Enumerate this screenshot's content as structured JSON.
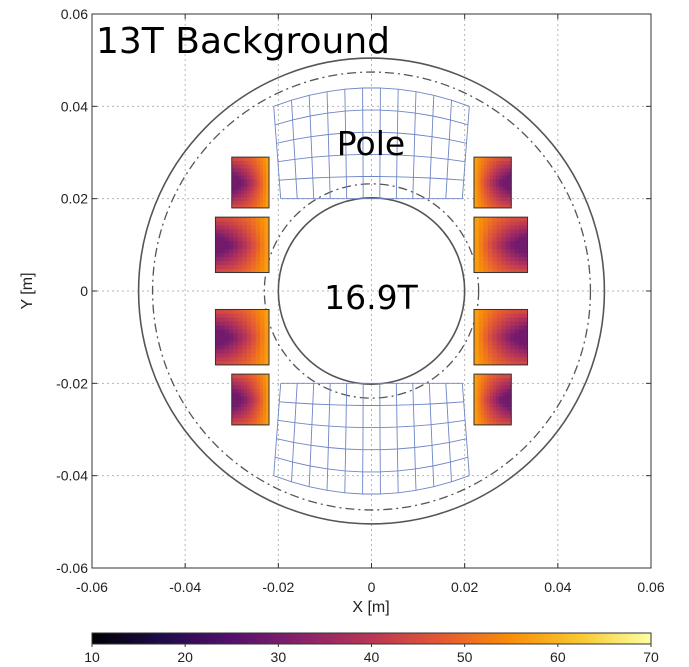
{
  "chart_data": {
    "type": "heatmap",
    "title": "",
    "xlabel": "X [m]",
    "ylabel": "Y [m]",
    "xlim": [
      -0.06,
      0.06
    ],
    "ylim": [
      -0.06,
      0.06
    ],
    "xticks": [
      "-0.06",
      "-0.04",
      "-0.02",
      "0",
      "0.02",
      "0.04",
      "0.06"
    ],
    "yticks": [
      "0.06",
      "0.04",
      "0.02",
      "0",
      "-0.02",
      "-0.04",
      "-0.06"
    ],
    "grid": true,
    "annotations": {
      "background": "13T Background",
      "pole": "Pole",
      "bore_field": "16.9T"
    },
    "colorbar": {
      "ticks": [
        "10",
        "20",
        "30",
        "40",
        "50",
        "60",
        "70"
      ],
      "range": [
        10,
        70
      ],
      "colormap": "inferno",
      "colors": [
        "#000004",
        "#1f0c48",
        "#550f6d",
        "#88226a",
        "#ba3655",
        "#e35933",
        "#f98e09",
        "#f8c931",
        "#fcffa4"
      ]
    },
    "circles": [
      {
        "r": 0.05,
        "style": "solid"
      },
      {
        "r": 0.047,
        "style": "dash-dot"
      },
      {
        "r": 0.023,
        "style": "dash-dot"
      },
      {
        "r": 0.02,
        "style": "solid"
      }
    ],
    "coil_blocks": [
      {
        "side": "left",
        "x": [
          -0.03,
          -0.022
        ],
        "y": [
          0.018,
          0.029
        ]
      },
      {
        "side": "left",
        "x": [
          -0.0335,
          -0.022
        ],
        "y": [
          0.004,
          0.016
        ]
      },
      {
        "side": "left",
        "x": [
          -0.0335,
          -0.022
        ],
        "y": [
          -0.016,
          -0.004
        ]
      },
      {
        "side": "left",
        "x": [
          -0.03,
          -0.022
        ],
        "y": [
          -0.029,
          -0.018
        ]
      },
      {
        "side": "right",
        "x": [
          0.022,
          0.03
        ],
        "y": [
          0.018,
          0.029
        ]
      },
      {
        "side": "right",
        "x": [
          0.022,
          0.0335
        ],
        "y": [
          0.004,
          0.016
        ]
      },
      {
        "side": "right",
        "x": [
          0.022,
          0.0335
        ],
        "y": [
          -0.016,
          -0.004
        ]
      },
      {
        "side": "right",
        "x": [
          0.022,
          0.03
        ],
        "y": [
          -0.029,
          -0.018
        ]
      }
    ],
    "poles": [
      {
        "side": "top",
        "x_outer": [
          -0.021,
          0.021
        ],
        "x_inner": [
          -0.0195,
          0.0195
        ],
        "y_outer": 0.04,
        "y_inner": 0.02
      },
      {
        "side": "bottom",
        "x_outer": [
          -0.021,
          0.021
        ],
        "x_inner": [
          -0.0195,
          0.0195
        ],
        "y_outer": -0.04,
        "y_inner": -0.02
      }
    ]
  }
}
